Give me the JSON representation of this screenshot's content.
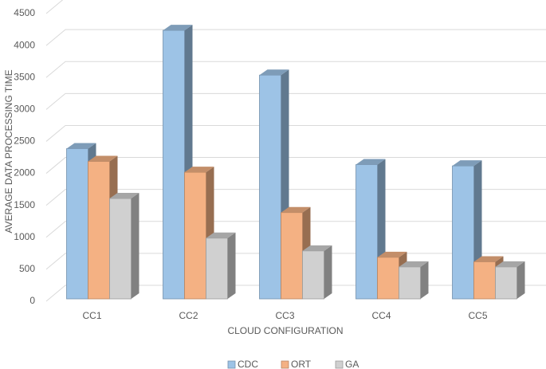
{
  "chart_data": {
    "type": "bar3d",
    "x_label": "CLOUD CONFIGURATION",
    "y_label": "AVERAGE DATA PROCESSING TIME",
    "categories": [
      "CC1",
      "CC2",
      "CC3",
      "CC4",
      "CC5"
    ],
    "series": [
      {
        "name": "CDC",
        "color": "#9dc3e6",
        "values": [
          2350,
          4200,
          3500,
          2100,
          2080
        ]
      },
      {
        "name": "ORT",
        "color": "#f4b183",
        "values": [
          2150,
          1980,
          1350,
          650,
          580
        ]
      },
      {
        "name": "GA",
        "color": "#d0d0d0",
        "values": [
          1570,
          950,
          750,
          500,
          500
        ]
      }
    ],
    "ylim": [
      0,
      4500
    ],
    "yticks": [
      0,
      500,
      1000,
      1500,
      2000,
      2500,
      3000,
      3500,
      4000,
      4500
    ],
    "grid": true,
    "legend": "bottom"
  }
}
